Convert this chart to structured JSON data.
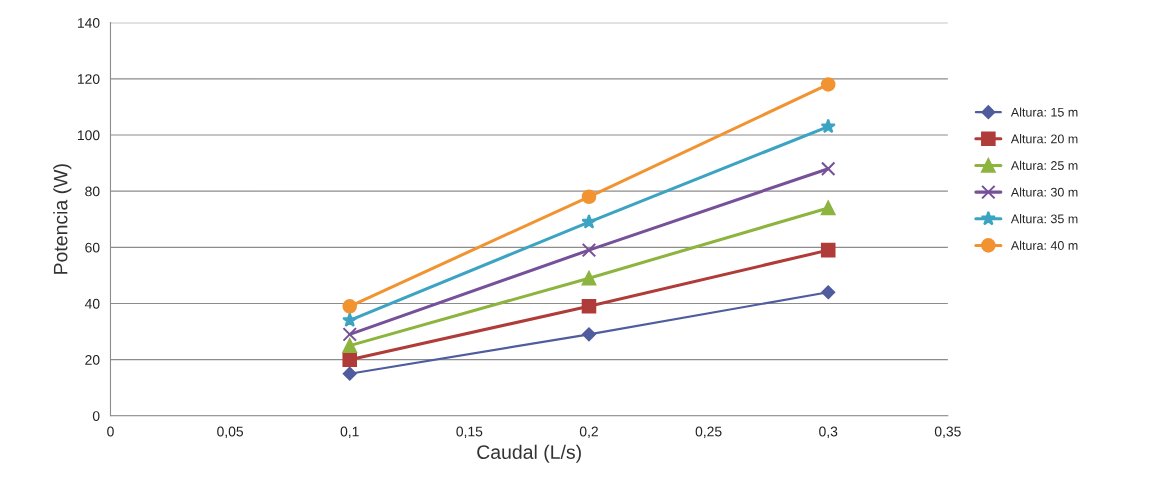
{
  "chart_data": {
    "type": "line",
    "xlabel": "Caudal (L/s)",
    "ylabel": "Potencia (W)",
    "x": [
      0.1,
      0.2,
      0.3
    ],
    "series": [
      {
        "name": "Altura: 15 m",
        "color": "#4f5c9e",
        "marker": "diamond",
        "values": [
          15,
          29,
          44
        ]
      },
      {
        "name": "Altura: 20 m",
        "color": "#b03c3a",
        "marker": "square",
        "values": [
          20,
          39,
          59
        ]
      },
      {
        "name": "Altura: 25 m",
        "color": "#8db43f",
        "marker": "triangle",
        "values": [
          25,
          49,
          74
        ]
      },
      {
        "name": "Altura: 30 m",
        "color": "#76519a",
        "marker": "cross",
        "values": [
          29,
          59,
          88
        ]
      },
      {
        "name": "Altura: 35 m",
        "color": "#3ca4c2",
        "marker": "star",
        "values": [
          34,
          69,
          103
        ]
      },
      {
        "name": "Altura: 40 m",
        "color": "#f29332",
        "marker": "circle",
        "values": [
          39,
          78,
          118
        ]
      }
    ],
    "xlim": [
      0,
      0.35
    ],
    "xticks": [
      {
        "value": 0,
        "label": "0"
      },
      {
        "value": 0.05,
        "label": "0,05"
      },
      {
        "value": 0.1,
        "label": "0,1"
      },
      {
        "value": 0.15,
        "label": "0,15"
      },
      {
        "value": 0.2,
        "label": "0,2"
      },
      {
        "value": 0.25,
        "label": "0,25"
      },
      {
        "value": 0.3,
        "label": "0,3"
      },
      {
        "value": 0.35,
        "label": "0,35"
      }
    ],
    "ylim": [
      0,
      140
    ],
    "yticks": [
      0,
      20,
      40,
      60,
      80,
      100,
      120,
      140
    ],
    "grid": "y",
    "legend": "right"
  }
}
